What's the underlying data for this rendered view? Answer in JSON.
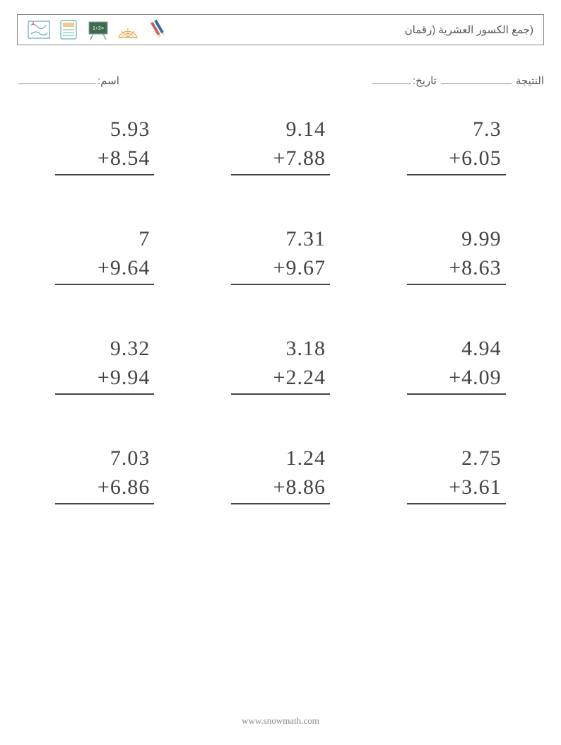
{
  "header": {
    "title": "(جمع الكسور العشرية (رقمان",
    "icons": [
      "map-icon",
      "tablet-icon",
      "chalkboard-icon",
      "protractor-icon",
      "pencils-icon"
    ]
  },
  "fields": {
    "name_label": "اسم:",
    "score_label": "النتيجة",
    "date_label": "تاريخ:"
  },
  "worksheet": {
    "type": "math-addition-vertical",
    "operator": "+",
    "columns": 3,
    "rows": 4,
    "font_family": "Georgia, 'Times New Roman', serif",
    "number_fontsize": 30,
    "number_color": "#444444",
    "rule_color": "#444444",
    "problems": [
      {
        "a": "5.93",
        "b": "8.54"
      },
      {
        "a": "9.14",
        "b": "7.88"
      },
      {
        "a": "7.3",
        "b": "6.05"
      },
      {
        "a": "7",
        "b": "9.64"
      },
      {
        "a": "7.31",
        "b": "9.67"
      },
      {
        "a": "9.99",
        "b": "8.63"
      },
      {
        "a": "9.32",
        "b": "9.94"
      },
      {
        "a": "3.18",
        "b": "2.24"
      },
      {
        "a": "4.94",
        "b": "4.09"
      },
      {
        "a": "7.03",
        "b": "6.86"
      },
      {
        "a": "1.24",
        "b": "8.86"
      },
      {
        "a": "2.75",
        "b": "3.61"
      }
    ]
  },
  "footer": {
    "text": "www.snowmath.com"
  },
  "colors": {
    "page_background": "#ffffff",
    "border": "#888888",
    "text_muted": "#555555",
    "footer_text": "#888888",
    "icon_blue": "#6aa3c9",
    "icon_teal": "#5fb7a6",
    "icon_green_dark": "#3f6b4f",
    "icon_orange": "#e2a84a",
    "icon_red": "#c9625c",
    "icon_navy": "#3c6aa0"
  }
}
